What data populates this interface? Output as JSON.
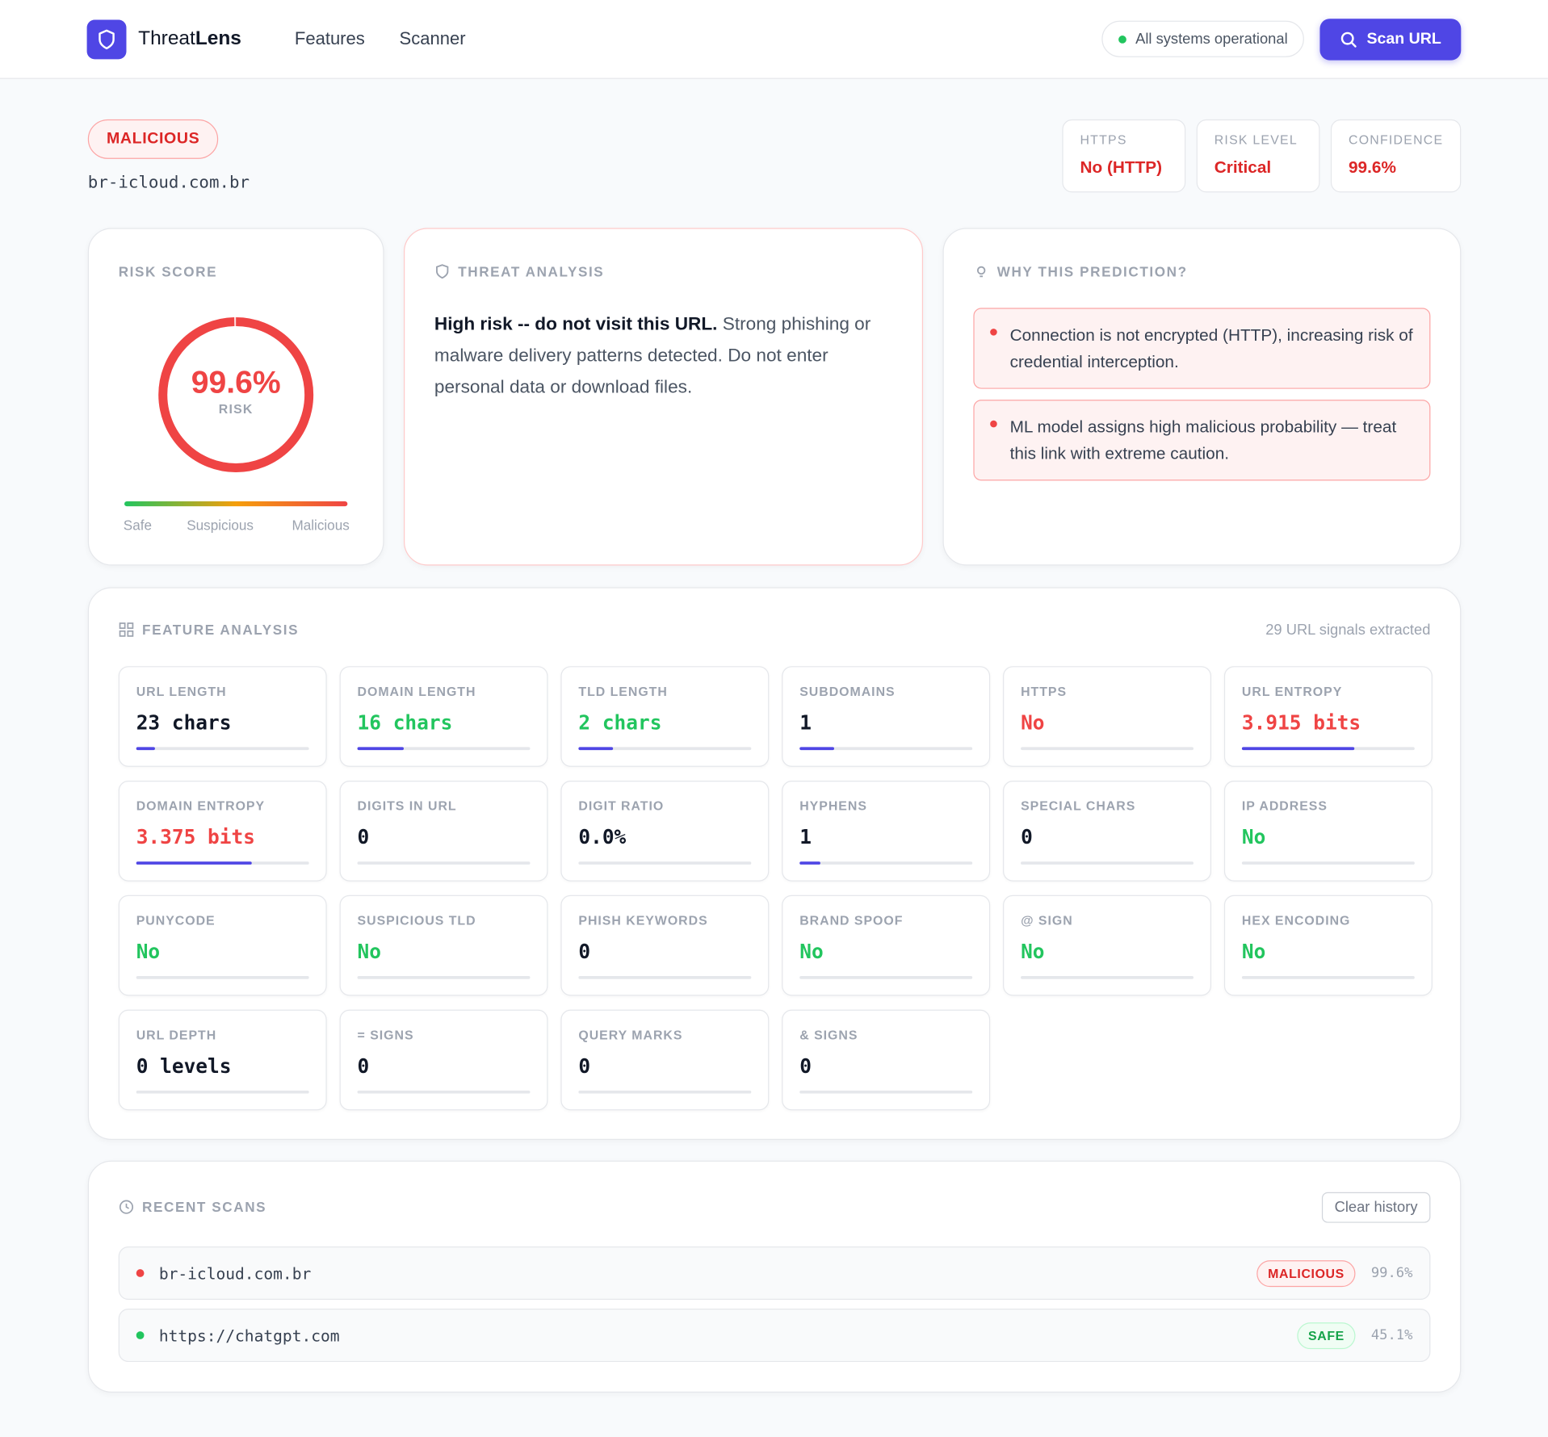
{
  "nav": {
    "brand_a": "Threat",
    "brand_b": "Lens",
    "links": [
      "Features",
      "Scanner"
    ],
    "status": "All systems operational",
    "scan_button": "Scan URL"
  },
  "result": {
    "verdict": "MALICIOUS",
    "url": "br-icloud.com.br",
    "stats": [
      {
        "label": "HTTPS",
        "value": "No (HTTP)"
      },
      {
        "label": "RISK LEVEL",
        "value": "Critical"
      },
      {
        "label": "CONFIDENCE",
        "value": "99.6%"
      }
    ]
  },
  "risk_card": {
    "title": "RISK SCORE",
    "score": {
      "value": 99.6,
      "label": "99.6%"
    },
    "unit": "RISK",
    "scale": [
      "Safe",
      "Suspicious",
      "Malicious"
    ]
  },
  "threat_card": {
    "title": "THREAT ANALYSIS",
    "lead": "High risk -- do not visit this URL.",
    "body": "Strong phishing or malware delivery patterns detected. Do not enter personal data or download files."
  },
  "why_card": {
    "title": "WHY THIS PREDICTION?",
    "reasons": [
      "Connection is not encrypted (HTTP), increasing risk of credential interception.",
      "ML model assigns high malicious probability — treat this link with extreme caution."
    ]
  },
  "features": {
    "title": "FEATURE ANALYSIS",
    "summary": "29 URL signals extracted",
    "items": [
      {
        "label": "URL LENGTH",
        "value": "23 chars",
        "tone": "dark",
        "bar": 0.11
      },
      {
        "label": "DOMAIN LENGTH",
        "value": "16 chars",
        "tone": "green",
        "bar": 0.27
      },
      {
        "label": "TLD LENGTH",
        "value": "2 chars",
        "tone": "green",
        "bar": 0.2
      },
      {
        "label": "SUBDOMAINS",
        "value": "1",
        "tone": "dark",
        "bar": 0.2
      },
      {
        "label": "HTTPS",
        "value": "No",
        "tone": "red",
        "bar": 0
      },
      {
        "label": "URL ENTROPY",
        "value": "3.915 bits",
        "tone": "red",
        "bar": 0.65
      },
      {
        "label": "DOMAIN ENTROPY",
        "value": "3.375 bits",
        "tone": "red",
        "bar": 0.67
      },
      {
        "label": "DIGITS IN URL",
        "value": "0",
        "tone": "dark",
        "bar": 0
      },
      {
        "label": "DIGIT RATIO",
        "value": "0.0%",
        "tone": "dark",
        "bar": 0
      },
      {
        "label": "HYPHENS",
        "value": "1",
        "tone": "dark",
        "bar": 0.12
      },
      {
        "label": "SPECIAL CHARS",
        "value": "0",
        "tone": "dark",
        "bar": 0
      },
      {
        "label": "IP ADDRESS",
        "value": "No",
        "tone": "green",
        "bar": 0
      },
      {
        "label": "PUNYCODE",
        "value": "No",
        "tone": "green",
        "bar": 0
      },
      {
        "label": "SUSPICIOUS TLD",
        "value": "No",
        "tone": "green",
        "bar": 0
      },
      {
        "label": "PHISH KEYWORDS",
        "value": "0",
        "tone": "dark",
        "bar": 0
      },
      {
        "label": "BRAND SPOOF",
        "value": "No",
        "tone": "green",
        "bar": 0
      },
      {
        "label": "@ SIGN",
        "value": "No",
        "tone": "green",
        "bar": 0
      },
      {
        "label": "HEX ENCODING",
        "value": "No",
        "tone": "green",
        "bar": 0
      },
      {
        "label": "URL DEPTH",
        "value": "0 levels",
        "tone": "dark",
        "bar": 0
      },
      {
        "label": "= SIGNS",
        "value": "0",
        "tone": "dark",
        "bar": 0
      },
      {
        "label": "QUERY MARKS",
        "value": "0",
        "tone": "dark",
        "bar": 0
      },
      {
        "label": "& SIGNS",
        "value": "0",
        "tone": "dark",
        "bar": 0
      }
    ]
  },
  "recent": {
    "title": "RECENT SCANS",
    "clear": "Clear history",
    "scans": [
      {
        "url": "br-icloud.com.br",
        "verdict": "MALICIOUS",
        "tone": "red",
        "score": "99.6%"
      },
      {
        "url": "https://chatgpt.com",
        "verdict": "SAFE",
        "tone": "green",
        "score": "45.1%"
      }
    ]
  }
}
